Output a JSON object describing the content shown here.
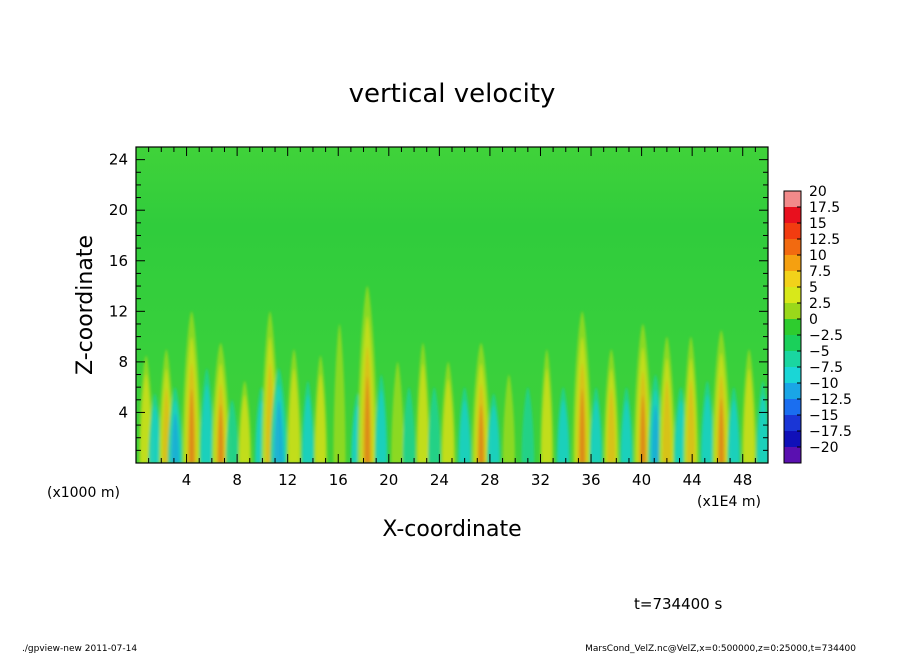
{
  "chart_data": {
    "type": "heatmap",
    "title": "vertical velocity",
    "xlabel": "X-coordinate",
    "ylabel": "Z-coordinate",
    "x_unit_note": "(x1E4 m)",
    "y_unit_note": "(x1000 m)",
    "xlim": [
      0,
      50
    ],
    "ylim": [
      0,
      25
    ],
    "x_ticks": [
      "4",
      "8",
      "12",
      "16",
      "20",
      "24",
      "28",
      "32",
      "36",
      "40",
      "44",
      "48"
    ],
    "y_ticks": [
      "4",
      "8",
      "12",
      "16",
      "20",
      "24"
    ],
    "colorbar": {
      "labels": [
        "20",
        "17.5",
        "15",
        "12.5",
        "10",
        "7.5",
        "5",
        "2.5",
        "0",
        "−2.5",
        "−5",
        "−7.5",
        "−10",
        "−12.5",
        "−15",
        "−17.5",
        "−20"
      ],
      "colors": [
        "#f28a8a",
        "#e8101e",
        "#f23c10",
        "#f26a10",
        "#f5a010",
        "#f2d21a",
        "#d8e81a",
        "#9ad81a",
        "#2ecc2e",
        "#1ad05a",
        "#1ad6a0",
        "#1ad6d6",
        "#1aa6e6",
        "#1a6ef0",
        "#1a36d6",
        "#1010b8",
        "#5a10b0"
      ]
    },
    "plumes": [
      {
        "x": 0.8,
        "amp": 0.55,
        "h": 8.5
      },
      {
        "x": 1.5,
        "amp": -0.45,
        "h": 5.5
      },
      {
        "x": 2.4,
        "amp": 0.6,
        "h": 9.0
      },
      {
        "x": 3.1,
        "amp": -0.6,
        "h": 6.0
      },
      {
        "x": 4.4,
        "amp": 0.9,
        "h": 12.0
      },
      {
        "x": 5.6,
        "amp": -0.55,
        "h": 7.5
      },
      {
        "x": 6.7,
        "amp": 0.85,
        "h": 9.5
      },
      {
        "x": 7.6,
        "amp": -0.4,
        "h": 5.0
      },
      {
        "x": 8.6,
        "amp": 0.45,
        "h": 6.5
      },
      {
        "x": 9.9,
        "amp": -0.45,
        "h": 6.0
      },
      {
        "x": 10.6,
        "amp": 0.75,
        "h": 12.0
      },
      {
        "x": 11.3,
        "amp": -0.8,
        "h": 7.5
      },
      {
        "x": 12.5,
        "amp": 0.55,
        "h": 9.0
      },
      {
        "x": 13.6,
        "amp": -0.45,
        "h": 6.5
      },
      {
        "x": 14.6,
        "amp": 0.45,
        "h": 8.5
      },
      {
        "x": 16.1,
        "amp": 0.35,
        "h": 11.0
      },
      {
        "x": 17.5,
        "amp": -0.45,
        "h": 5.5
      },
      {
        "x": 18.3,
        "amp": 1.0,
        "h": 14.0
      },
      {
        "x": 19.4,
        "amp": -0.45,
        "h": 7.0
      },
      {
        "x": 20.7,
        "amp": 0.4,
        "h": 8.0
      },
      {
        "x": 21.6,
        "amp": -0.4,
        "h": 6.0
      },
      {
        "x": 22.7,
        "amp": 0.5,
        "h": 9.5
      },
      {
        "x": 23.6,
        "amp": -0.4,
        "h": 6.0
      },
      {
        "x": 24.7,
        "amp": 0.55,
        "h": 8.0
      },
      {
        "x": 26.0,
        "amp": -0.5,
        "h": 6.0
      },
      {
        "x": 27.3,
        "amp": 0.85,
        "h": 9.5
      },
      {
        "x": 28.3,
        "amp": -0.5,
        "h": 5.5
      },
      {
        "x": 29.5,
        "amp": 0.35,
        "h": 7.0
      },
      {
        "x": 31.0,
        "amp": -0.4,
        "h": 6.0
      },
      {
        "x": 32.5,
        "amp": 0.45,
        "h": 9.0
      },
      {
        "x": 33.8,
        "amp": -0.5,
        "h": 6.0
      },
      {
        "x": 35.3,
        "amp": 0.9,
        "h": 12.0
      },
      {
        "x": 36.4,
        "amp": -0.45,
        "h": 6.0
      },
      {
        "x": 37.6,
        "amp": 0.6,
        "h": 9.0
      },
      {
        "x": 38.8,
        "amp": -0.45,
        "h": 6.0
      },
      {
        "x": 40.1,
        "amp": 0.85,
        "h": 11.0
      },
      {
        "x": 41.1,
        "amp": -0.6,
        "h": 7.0
      },
      {
        "x": 42.0,
        "amp": 0.7,
        "h": 10.0
      },
      {
        "x": 43.1,
        "amp": -0.55,
        "h": 6.0
      },
      {
        "x": 43.9,
        "amp": 0.6,
        "h": 10.0
      },
      {
        "x": 45.2,
        "amp": -0.55,
        "h": 6.5
      },
      {
        "x": 46.3,
        "amp": 0.85,
        "h": 10.5
      },
      {
        "x": 47.3,
        "amp": -0.45,
        "h": 6.0
      },
      {
        "x": 48.5,
        "amp": 0.55,
        "h": 9.0
      },
      {
        "x": 49.6,
        "amp": -0.5,
        "h": 6.5
      }
    ]
  },
  "footer": {
    "time_label": "t=734400 s",
    "program_label": "./gpview-new   2011-07-14",
    "source_label": "MarsCond_VelZ.nc@VelZ,x=0:500000,z=0:25000,t=734400"
  }
}
